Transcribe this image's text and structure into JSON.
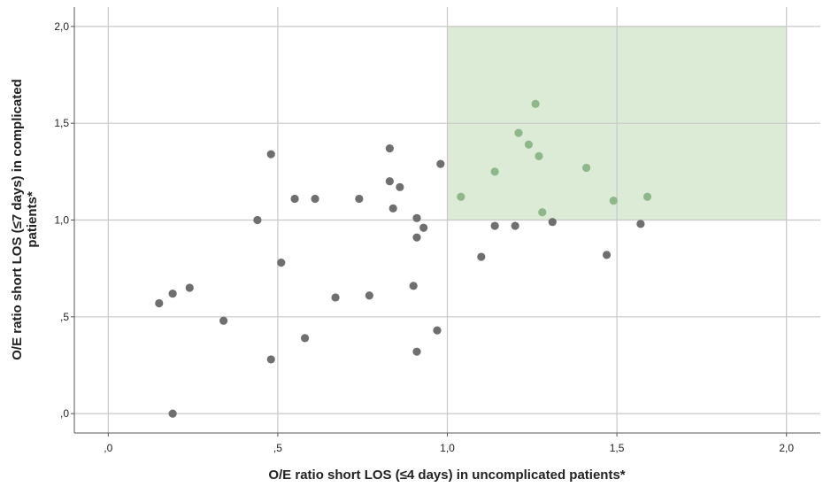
{
  "chart_data": {
    "type": "scatter",
    "title": "",
    "xlabel": "O/E ratio short LOS (≤4 days) in uncomplicated patients*",
    "ylabel_lines": [
      "O/E ratio short LOS (≤7 days) in complicated",
      "patients*"
    ],
    "xlim": [
      -0.1,
      2.1
    ],
    "ylim": [
      -0.1,
      2.1
    ],
    "x_ticks": [
      {
        "value": 0,
        "label": ",0"
      },
      {
        "value": 0.5,
        "label": ",5"
      },
      {
        "value": 1.0,
        "label": "1,0"
      },
      {
        "value": 1.5,
        "label": "1,5"
      },
      {
        "value": 2.0,
        "label": "2,0"
      }
    ],
    "y_ticks": [
      {
        "value": 0,
        "label": ",0"
      },
      {
        "value": 0.5,
        "label": ",5"
      },
      {
        "value": 1.0,
        "label": "1,0"
      },
      {
        "value": 1.5,
        "label": "1,5"
      },
      {
        "value": 2.0,
        "label": "2,0"
      }
    ],
    "grid": true,
    "highlight_region": {
      "x": [
        1.0,
        2.0
      ],
      "y": [
        1.0,
        2.0
      ],
      "color": "#dcebd6"
    },
    "colors": {
      "point": "#6f6f6f",
      "highlight_point": "#8fb88a",
      "grid": "#c8c8c8",
      "axis": "#555555"
    },
    "points": [
      {
        "x": 0.15,
        "y": 0.57
      },
      {
        "x": 0.19,
        "y": 0.62
      },
      {
        "x": 0.24,
        "y": 0.65
      },
      {
        "x": 0.19,
        "y": 0.0
      },
      {
        "x": 0.34,
        "y": 0.48
      },
      {
        "x": 0.44,
        "y": 1.0
      },
      {
        "x": 0.48,
        "y": 1.34
      },
      {
        "x": 0.51,
        "y": 0.78
      },
      {
        "x": 0.55,
        "y": 1.11
      },
      {
        "x": 0.61,
        "y": 1.11
      },
      {
        "x": 0.48,
        "y": 0.28
      },
      {
        "x": 0.58,
        "y": 0.39
      },
      {
        "x": 0.67,
        "y": 0.6
      },
      {
        "x": 0.74,
        "y": 1.11
      },
      {
        "x": 0.77,
        "y": 0.61
      },
      {
        "x": 0.83,
        "y": 1.37
      },
      {
        "x": 0.83,
        "y": 1.2
      },
      {
        "x": 0.86,
        "y": 1.17
      },
      {
        "x": 0.84,
        "y": 1.06
      },
      {
        "x": 0.91,
        "y": 1.01
      },
      {
        "x": 0.93,
        "y": 0.96
      },
      {
        "x": 0.91,
        "y": 0.91
      },
      {
        "x": 0.9,
        "y": 0.66
      },
      {
        "x": 0.91,
        "y": 0.32
      },
      {
        "x": 0.97,
        "y": 0.43
      },
      {
        "x": 0.98,
        "y": 1.29
      },
      {
        "x": 1.04,
        "y": 1.12
      },
      {
        "x": 1.1,
        "y": 0.81
      },
      {
        "x": 1.14,
        "y": 0.97
      },
      {
        "x": 1.14,
        "y": 1.25
      },
      {
        "x": 1.2,
        "y": 0.97
      },
      {
        "x": 1.21,
        "y": 1.45
      },
      {
        "x": 1.24,
        "y": 1.39
      },
      {
        "x": 1.26,
        "y": 1.6
      },
      {
        "x": 1.27,
        "y": 1.33
      },
      {
        "x": 1.28,
        "y": 1.04
      },
      {
        "x": 1.31,
        "y": 0.99
      },
      {
        "x": 1.41,
        "y": 1.27
      },
      {
        "x": 1.47,
        "y": 0.82
      },
      {
        "x": 1.49,
        "y": 1.1
      },
      {
        "x": 1.57,
        "y": 0.98
      },
      {
        "x": 1.59,
        "y": 1.12
      }
    ]
  }
}
